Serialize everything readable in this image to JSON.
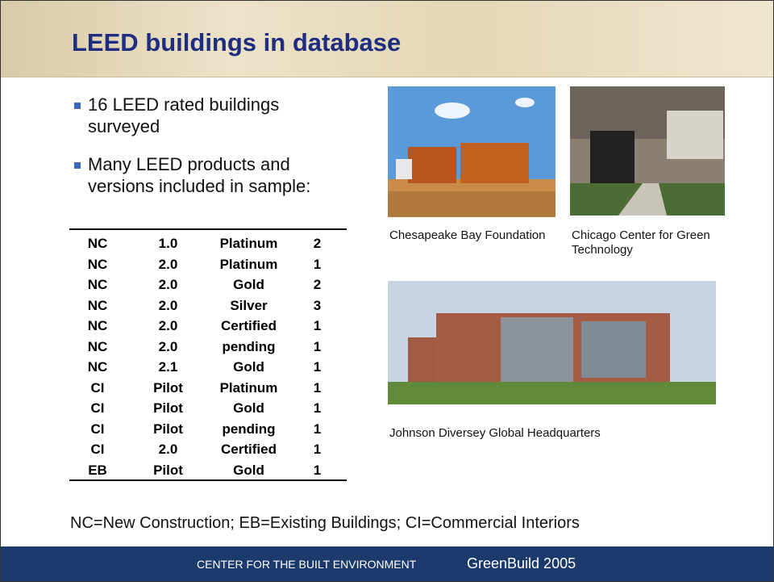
{
  "header": {
    "title": "LEED buildings in database"
  },
  "bullets": [
    "16 LEED rated buildings surveyed",
    "Many LEED products and versions included in sample:"
  ],
  "table": {
    "rows": [
      [
        "NC",
        "1.0",
        "Platinum",
        2
      ],
      [
        "NC",
        "2.0",
        "Platinum",
        1
      ],
      [
        "NC",
        "2.0",
        "Gold",
        2
      ],
      [
        "NC",
        "2.0",
        "Silver",
        3
      ],
      [
        "NC",
        "2.0",
        "Certified",
        1
      ],
      [
        "NC",
        "2.0",
        "pending",
        1
      ],
      [
        "NC",
        "2.1",
        "Gold",
        1
      ],
      [
        "CI",
        "Pilot",
        "Platinum",
        1
      ],
      [
        "CI",
        "Pilot",
        "Gold",
        1
      ],
      [
        "CI",
        "Pilot",
        "pending",
        1
      ],
      [
        "CI",
        "2.0",
        "Certified",
        1
      ],
      [
        "EB",
        "Pilot",
        "Gold",
        1
      ]
    ]
  },
  "images": [
    {
      "caption": "Chesapeake Bay Foundation"
    },
    {
      "caption": "Chicago Center for Green Technology"
    },
    {
      "caption": "Johnson Diversey Global Headquarters"
    }
  ],
  "legend": "NC=New Construction; EB=Existing Buildings; CI=Commercial Interiors",
  "footer": {
    "org": "CENTER FOR THE BUILT ENVIRONMENT",
    "event": "GreenBuild 2005"
  }
}
